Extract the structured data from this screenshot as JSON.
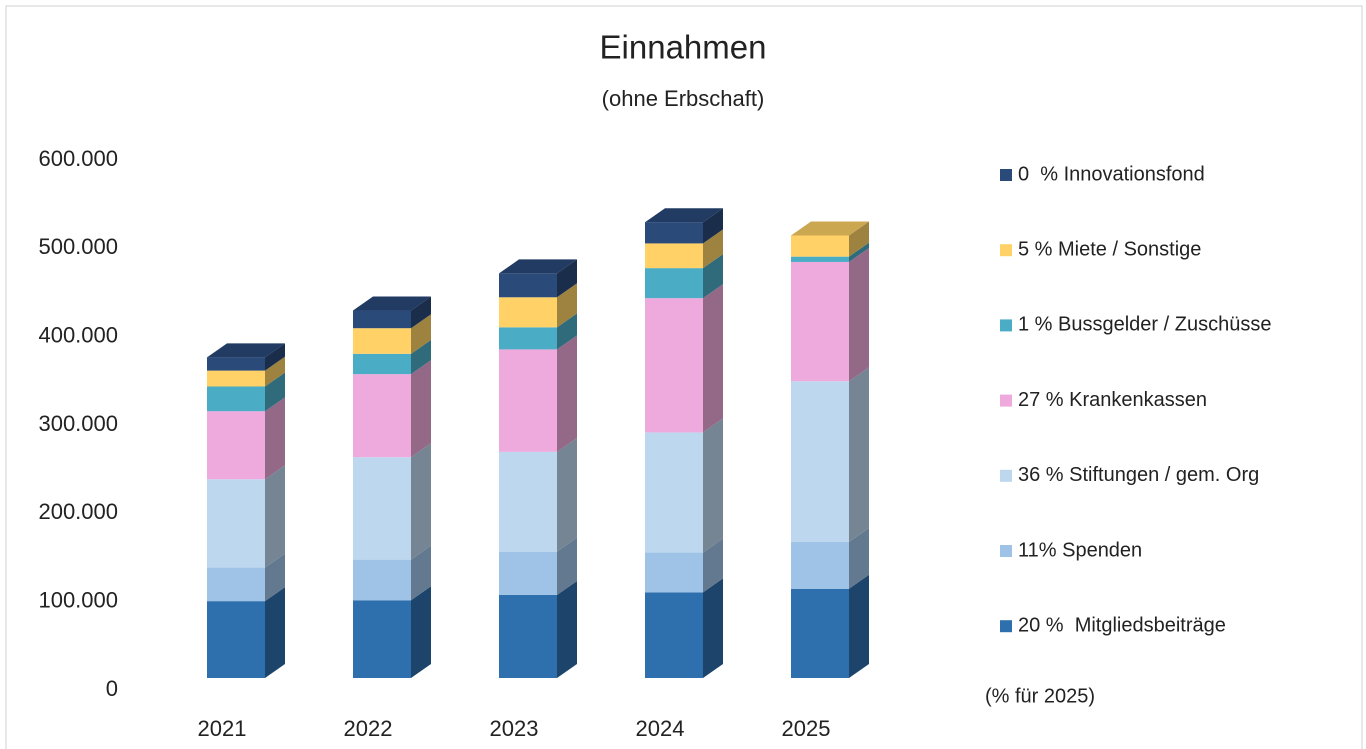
{
  "chart_data": {
    "type": "bar3d_stacked",
    "title": "Einnahmen",
    "subtitle": "(ohne Erbschaft)",
    "categories": [
      "2021",
      "2022",
      "2023",
      "2024",
      "2025"
    ],
    "series": [
      {
        "name": "20 %  Mitgliedsbeiträge",
        "color": "#2e6fad",
        "values": [
          87000,
          88000,
          94000,
          97000,
          101000
        ]
      },
      {
        "name": "11% Spenden",
        "color": "#9fc3e6",
        "values": [
          38000,
          46000,
          49000,
          45000,
          53000
        ]
      },
      {
        "name": "36 % Stiftungen / gem. Org",
        "color": "#bdd7ee",
        "values": [
          100000,
          116000,
          113000,
          136000,
          182000
        ]
      },
      {
        "name": "27 % Krankenkassen",
        "color": "#eeaadc",
        "values": [
          77000,
          94000,
          116000,
          152000,
          135000
        ]
      },
      {
        "name": "1 % Bussgelder / Zuschüsse",
        "color": "#4bacc6",
        "values": [
          28000,
          23000,
          25000,
          34000,
          6000
        ]
      },
      {
        "name": "5 % Miete / Sonstige",
        "color": "#ffd166",
        "values": [
          18000,
          29000,
          34000,
          28000,
          24000
        ]
      },
      {
        "name": "0  % Innovationsfond",
        "color": "#2a4a7a",
        "values": [
          15000,
          20000,
          27000,
          24000,
          0
        ]
      }
    ],
    "legend_note": "(% für 2025)",
    "ylim": [
      0,
      600000
    ],
    "yticks": [
      0,
      {
        "value": 100000,
        "label": "100.000"
      },
      {
        "value": 200000,
        "label": "200.000"
      },
      {
        "value": 300000,
        "label": "300.000"
      },
      {
        "value": 400000,
        "label": "400.000"
      },
      {
        "value": 500000,
        "label": "500.000"
      },
      {
        "value": 600000,
        "label": "600.000"
      }
    ],
    "legend": "right"
  }
}
